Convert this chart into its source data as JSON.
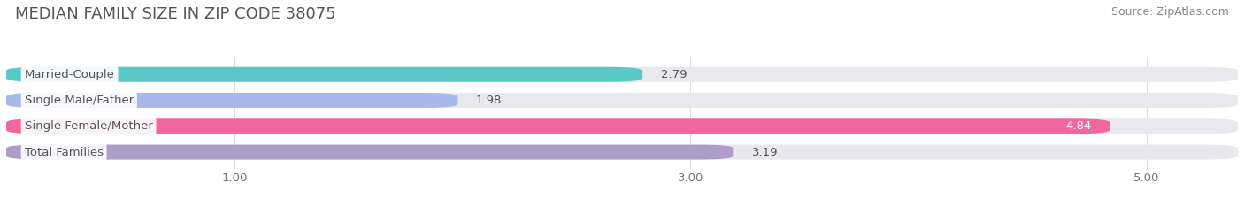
{
  "title": "MEDIAN FAMILY SIZE IN ZIP CODE 38075",
  "source": "Source: ZipAtlas.com",
  "categories": [
    "Married-Couple",
    "Single Male/Father",
    "Single Female/Mother",
    "Total Families"
  ],
  "values": [
    2.79,
    1.98,
    4.84,
    3.19
  ],
  "bar_colors": [
    "#5bc8c8",
    "#a8b8e8",
    "#f267a0",
    "#b09cc8"
  ],
  "bar_bg_color": "#e8e8ee",
  "value_label_color_override": {
    "Single Female/Mother": "#ffffff"
  },
  "xlim_left": 0.0,
  "xlim_right": 5.4,
  "bar_data_min": 0.0,
  "xticks": [
    1.0,
    3.0,
    5.0
  ],
  "xtick_labels": [
    "1.00",
    "3.00",
    "5.00"
  ],
  "title_fontsize": 13,
  "source_fontsize": 9,
  "label_fontsize": 9.5,
  "value_fontsize": 9.5,
  "bar_height": 0.58,
  "background_color": "#ffffff",
  "label_box_color": "#ffffff",
  "label_text_color": "#555555",
  "grid_color": "#dddddd"
}
